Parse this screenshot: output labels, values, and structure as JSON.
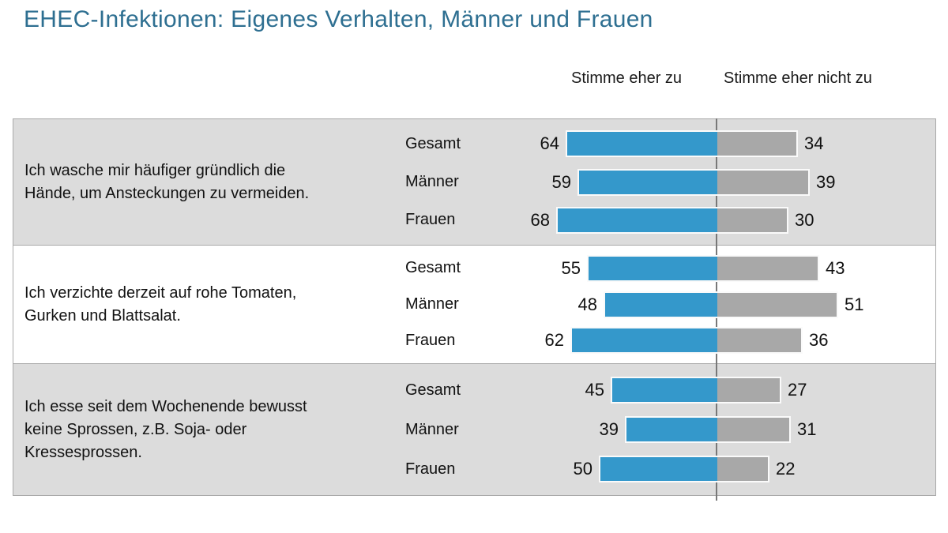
{
  "title": "EHEC-Infektionen: Eigenes Verhalten, Männer und Frauen",
  "legend": {
    "agree": "Stimme eher zu",
    "disagree": "Stimme eher nicht zu"
  },
  "chart_data": {
    "type": "bar",
    "variant": "diverging-horizontal-paired",
    "unit": "percent",
    "title": "EHEC-Infektionen: Eigenes Verhalten, Männer und Frauen",
    "series_labels": [
      "Stimme eher zu",
      "Stimme eher nicht zu"
    ],
    "categories": [
      "Gesamt",
      "Männer",
      "Frauen"
    ],
    "xlim": [
      0,
      100
    ],
    "colors": {
      "agree_bar": "#3498cb",
      "disagree_bar": "#a8a8a8",
      "group_bg": "#dcdcdc",
      "title_text": "#2e6f91"
    },
    "groups": [
      {
        "question": "Ich wasche mir häufiger gründlich die\nHände, um Ansteckungen zu vermeiden.",
        "rows": [
          {
            "label": "Gesamt",
            "agree": 64,
            "disagree": 34
          },
          {
            "label": "Männer",
            "agree": 59,
            "disagree": 39
          },
          {
            "label": "Frauen",
            "agree": 68,
            "disagree": 30
          }
        ]
      },
      {
        "question": "Ich verzichte derzeit auf rohe Tomaten,\nGurken und Blattsalat.",
        "rows": [
          {
            "label": "Gesamt",
            "agree": 55,
            "disagree": 43
          },
          {
            "label": "Männer",
            "agree": 48,
            "disagree": 51
          },
          {
            "label": "Frauen",
            "agree": 62,
            "disagree": 36
          }
        ]
      },
      {
        "question": "Ich esse seit dem Wochenende bewusst\nkeine Sprossen, z.B. Soja- oder\nKressesprossen.",
        "rows": [
          {
            "label": "Gesamt",
            "agree": 45,
            "disagree": 27
          },
          {
            "label": "Männer",
            "agree": 39,
            "disagree": 31
          },
          {
            "label": "Frauen",
            "agree": 50,
            "disagree": 22
          }
        ]
      }
    ]
  }
}
